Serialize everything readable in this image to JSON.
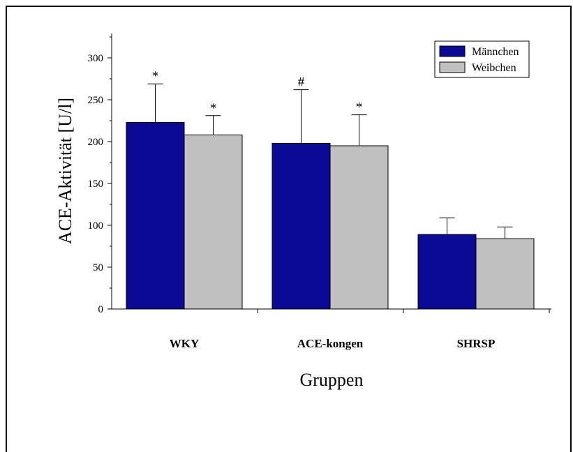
{
  "chart_data": {
    "type": "bar",
    "title": "",
    "xlabel": "Gruppen",
    "ylabel": "ACE-Aktivität [U/l]",
    "ylim": [
      0,
      325
    ],
    "yticks": [
      "0",
      "50",
      "100",
      "150",
      "200",
      "250",
      "300"
    ],
    "categories": [
      "WKY",
      "ACE-kongen",
      "SHRSP"
    ],
    "series": [
      {
        "name": "Männchen",
        "color": "#0a0a96",
        "values": [
          223,
          198,
          89
        ],
        "errors": [
          46,
          64,
          20
        ],
        "annotations": [
          "*",
          "#",
          ""
        ]
      },
      {
        "name": "Weibchen",
        "color": "#c0c0c0",
        "values": [
          208,
          195,
          84
        ],
        "errors": [
          23,
          37,
          14
        ],
        "annotations": [
          "*",
          "*",
          ""
        ]
      }
    ],
    "legend_position": "top-right",
    "grid": false
  }
}
